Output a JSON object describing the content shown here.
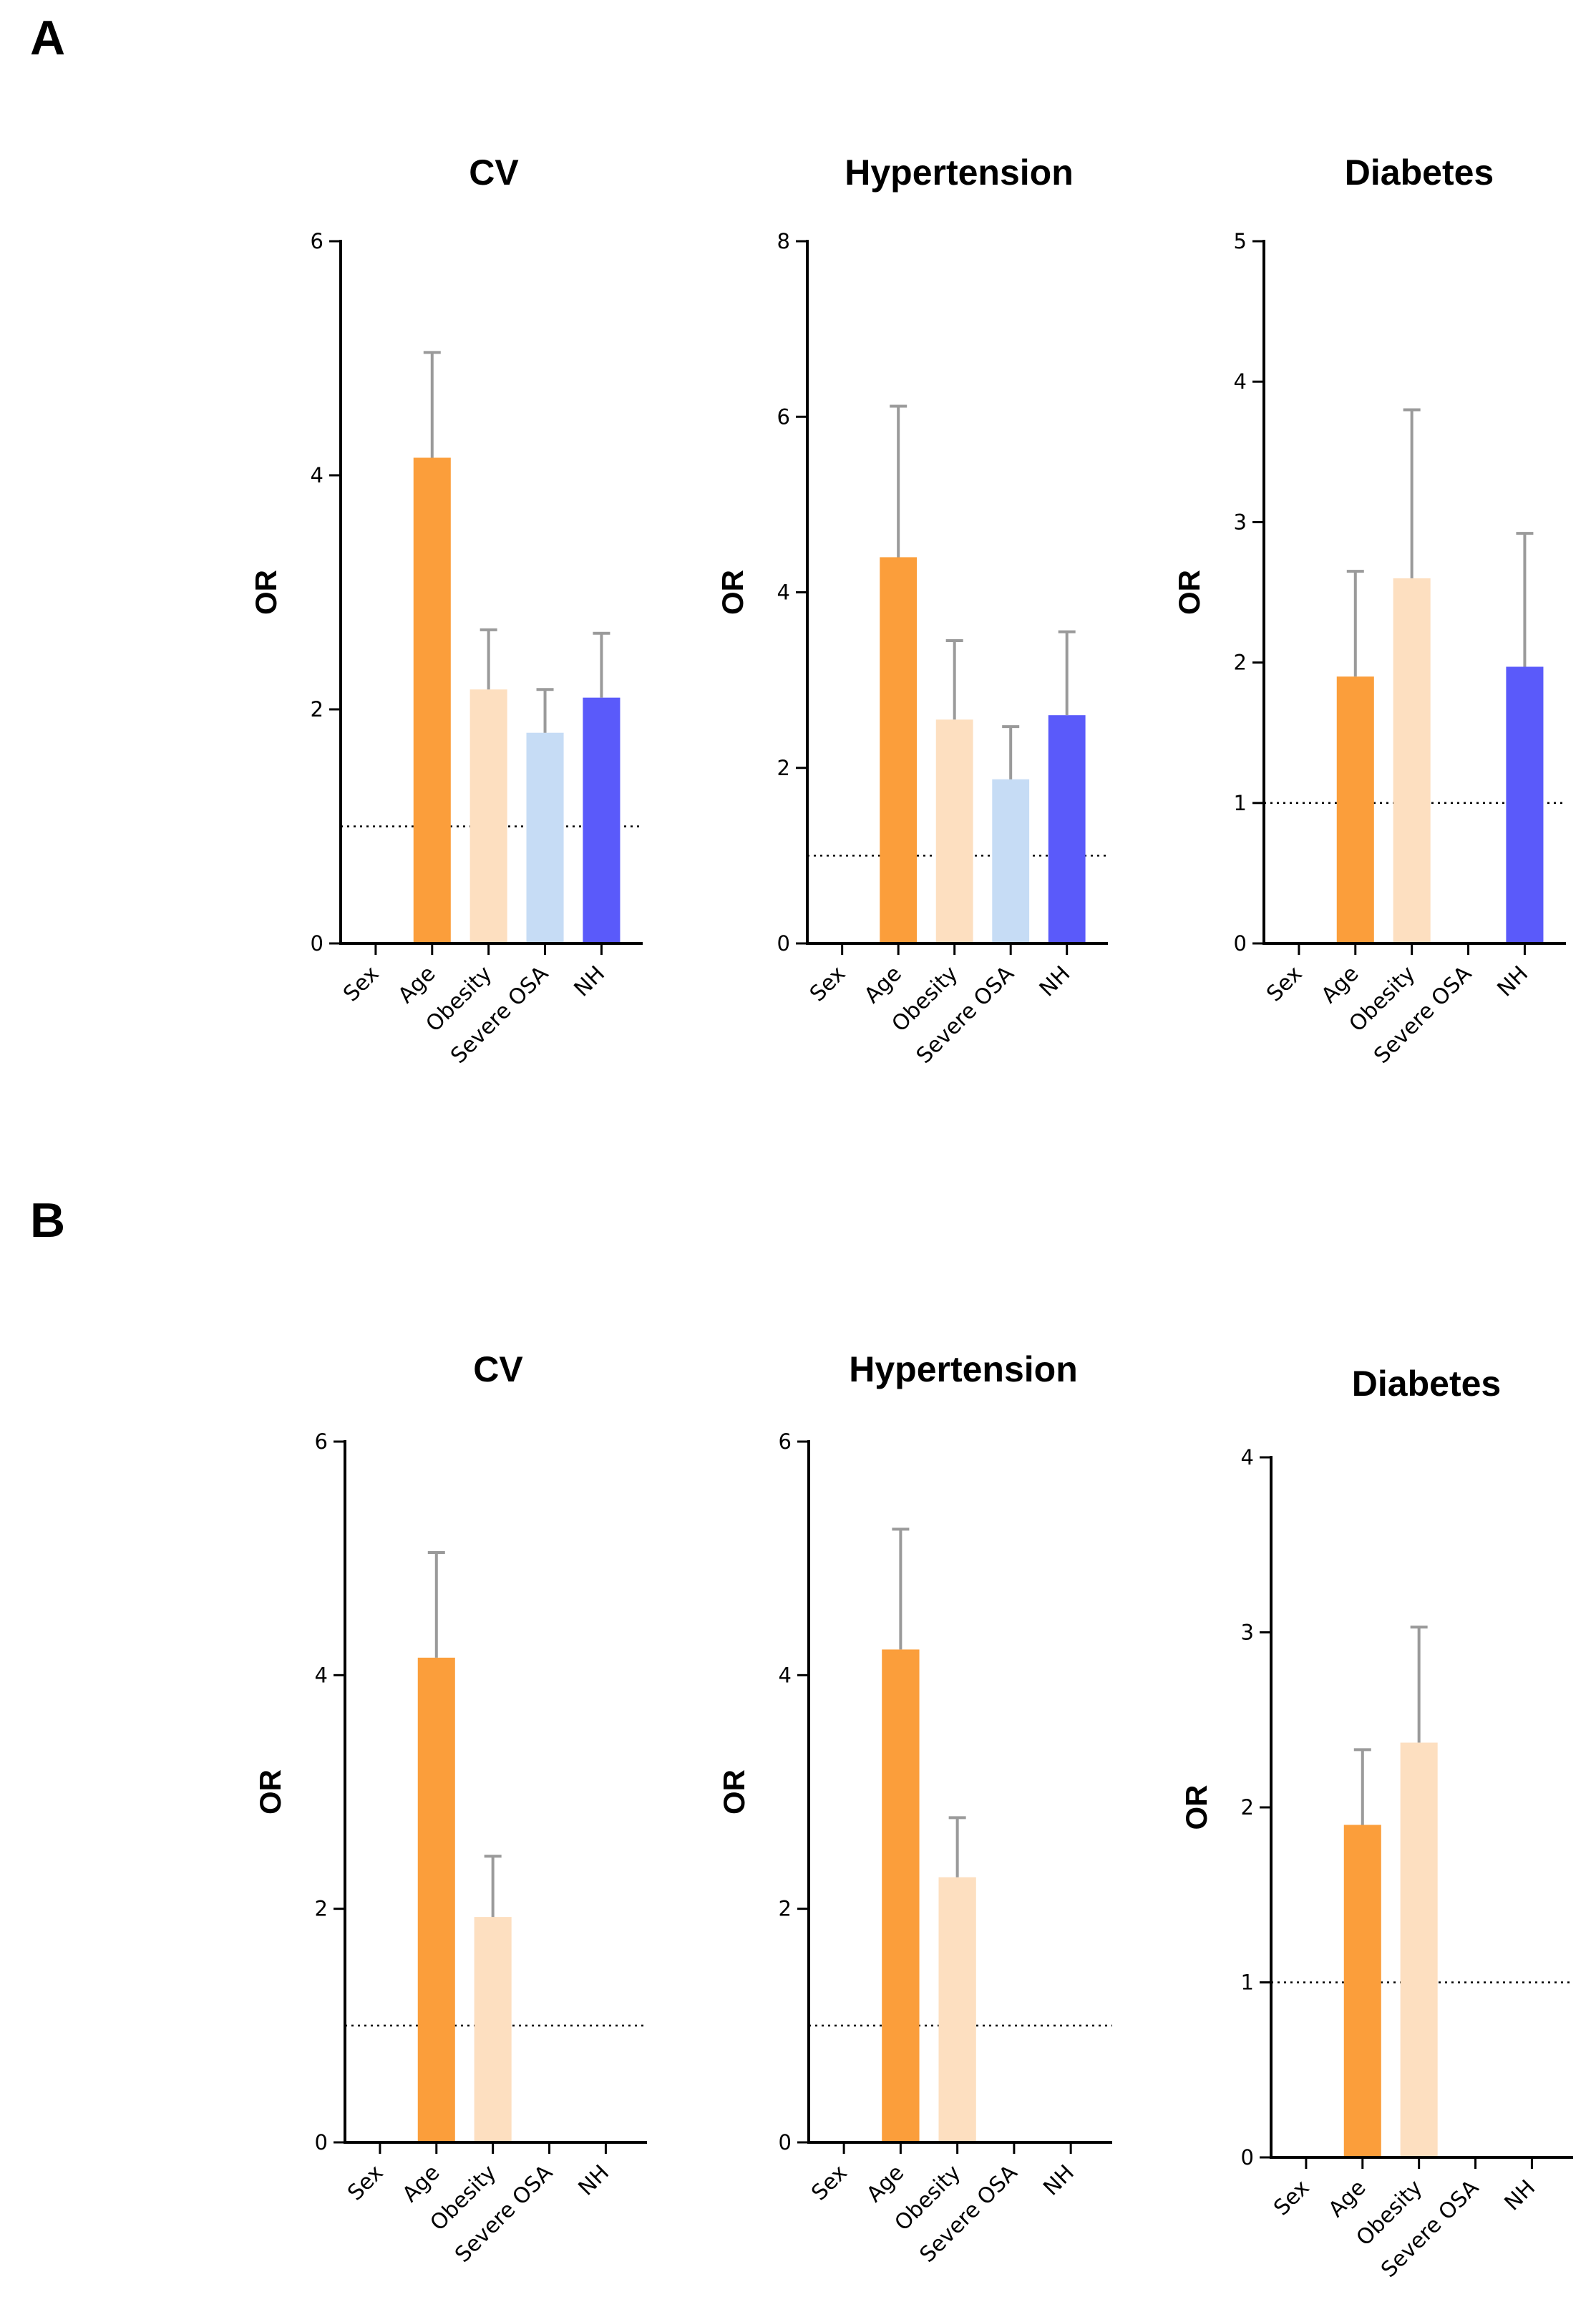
{
  "panels": [
    {
      "label": "A"
    },
    {
      "label": "B"
    }
  ],
  "colors": {
    "Age": "#FB9E3B",
    "Obesity": "#FDDFC0",
    "Severe OSA": "#C6DCF5",
    "NH": "#5A5AFA",
    "error": "#9A9A9A",
    "axis": "#000000"
  },
  "chart_data": [
    {
      "panel": "A",
      "type": "bar",
      "title": "CV",
      "ylabel": "OR",
      "ylim": [
        0,
        6
      ],
      "yticks": [
        0,
        2,
        4,
        6
      ],
      "reference_line": 1,
      "categories": [
        "Sex",
        "Age",
        "Obesity",
        "Severe OSA",
        "NH"
      ],
      "values": [
        null,
        4.15,
        2.17,
        1.8,
        2.1
      ],
      "error_upper": [
        null,
        5.05,
        2.68,
        2.17,
        2.65
      ]
    },
    {
      "panel": "A",
      "type": "bar",
      "title": "Hypertension",
      "ylabel": "OR",
      "ylim": [
        0,
        8
      ],
      "yticks": [
        0,
        2,
        4,
        6,
        8
      ],
      "reference_line": 1,
      "categories": [
        "Sex",
        "Age",
        "Obesity",
        "Severe OSA",
        "NH"
      ],
      "values": [
        null,
        4.4,
        2.55,
        1.87,
        2.6
      ],
      "error_upper": [
        null,
        6.12,
        3.45,
        2.47,
        3.55
      ]
    },
    {
      "panel": "A",
      "type": "bar",
      "title": "Diabetes",
      "ylabel": "OR",
      "ylim": [
        0,
        5
      ],
      "yticks": [
        0,
        1,
        2,
        3,
        4,
        5
      ],
      "reference_line": 1,
      "categories": [
        "Sex",
        "Age",
        "Obesity",
        "Severe OSA",
        "NH"
      ],
      "values": [
        null,
        1.9,
        2.6,
        null,
        1.97
      ],
      "error_upper": [
        null,
        2.65,
        3.8,
        null,
        2.92
      ]
    },
    {
      "panel": "B",
      "type": "bar",
      "title": "CV",
      "ylabel": "OR",
      "ylim": [
        0,
        6
      ],
      "yticks": [
        0,
        2,
        4,
        6
      ],
      "reference_line": 1,
      "categories": [
        "Sex",
        "Age",
        "Obesity",
        "Severe OSA",
        "NH"
      ],
      "values": [
        null,
        4.15,
        1.93,
        null,
        null
      ],
      "error_upper": [
        null,
        5.05,
        2.45,
        null,
        null
      ]
    },
    {
      "panel": "B",
      "type": "bar",
      "title": "Hypertension",
      "ylabel": "OR",
      "ylim": [
        0,
        6
      ],
      "yticks": [
        0,
        2,
        4,
        6
      ],
      "reference_line": 1,
      "categories": [
        "Sex",
        "Age",
        "Obesity",
        "Severe OSA",
        "NH"
      ],
      "values": [
        null,
        4.22,
        2.27,
        null,
        null
      ],
      "error_upper": [
        null,
        5.25,
        2.78,
        null,
        null
      ]
    },
    {
      "panel": "B",
      "type": "bar",
      "title": "Diabetes",
      "ylabel": "OR",
      "ylim": [
        0,
        4
      ],
      "yticks": [
        0,
        1,
        2,
        3,
        4
      ],
      "reference_line": 1,
      "categories": [
        "Sex",
        "Age",
        "Obesity",
        "Severe OSA",
        "NH"
      ],
      "values": [
        null,
        1.9,
        2.37,
        null,
        null
      ],
      "error_upper": [
        null,
        2.33,
        3.03,
        null,
        null
      ]
    }
  ]
}
